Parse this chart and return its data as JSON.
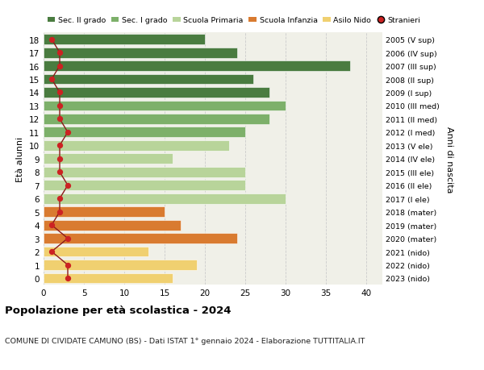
{
  "ages": [
    18,
    17,
    16,
    15,
    14,
    13,
    12,
    11,
    10,
    9,
    8,
    7,
    6,
    5,
    4,
    3,
    2,
    1,
    0
  ],
  "bar_values": [
    20,
    24,
    38,
    26,
    28,
    30,
    28,
    25,
    23,
    16,
    25,
    25,
    30,
    15,
    17,
    24,
    13,
    19,
    16
  ],
  "stranieri": [
    1,
    2,
    2,
    1,
    2,
    2,
    2,
    3,
    2,
    2,
    2,
    3,
    2,
    2,
    1,
    3,
    1,
    3,
    3
  ],
  "right_labels": [
    "2005 (V sup)",
    "2006 (IV sup)",
    "2007 (III sup)",
    "2008 (II sup)",
    "2009 (I sup)",
    "2010 (III med)",
    "2011 (II med)",
    "2012 (I med)",
    "2013 (V ele)",
    "2014 (IV ele)",
    "2015 (III ele)",
    "2016 (II ele)",
    "2017 (I ele)",
    "2018 (mater)",
    "2019 (mater)",
    "2020 (mater)",
    "2021 (nido)",
    "2022 (nido)",
    "2023 (nido)"
  ],
  "bar_colors": [
    "#4a7c40",
    "#4a7c40",
    "#4a7c40",
    "#4a7c40",
    "#4a7c40",
    "#7db06a",
    "#7db06a",
    "#7db06a",
    "#b8d49a",
    "#b8d49a",
    "#b8d49a",
    "#b8d49a",
    "#b8d49a",
    "#d97b30",
    "#d97b30",
    "#d97b30",
    "#f0d070",
    "#f0d070",
    "#f0d070"
  ],
  "legend_labels": [
    "Sec. II grado",
    "Sec. I grado",
    "Scuola Primaria",
    "Scuola Infanzia",
    "Asilo Nido",
    "Stranieri"
  ],
  "legend_colors": [
    "#4a7c40",
    "#7db06a",
    "#b8d49a",
    "#d97b30",
    "#f0d070",
    "#cc2222"
  ],
  "stranieri_color": "#cc2222",
  "stranieri_line_color": "#8b1a1a",
  "ylabel_left": "Età alunni",
  "ylabel_right": "Anni di nascita",
  "title": "Popolazione per età scolastica - 2024",
  "subtitle": "COMUNE DI CIVIDATE CAMUNO (BS) - Dati ISTAT 1° gennaio 2024 - Elaborazione TUTTITALIA.IT",
  "xlim": [
    0,
    42
  ],
  "xticks": [
    0,
    5,
    10,
    15,
    20,
    25,
    30,
    35,
    40
  ],
  "chart_bg": "#f0f0e8",
  "fig_bg": "#ffffff",
  "grid_color": "#cccccc"
}
